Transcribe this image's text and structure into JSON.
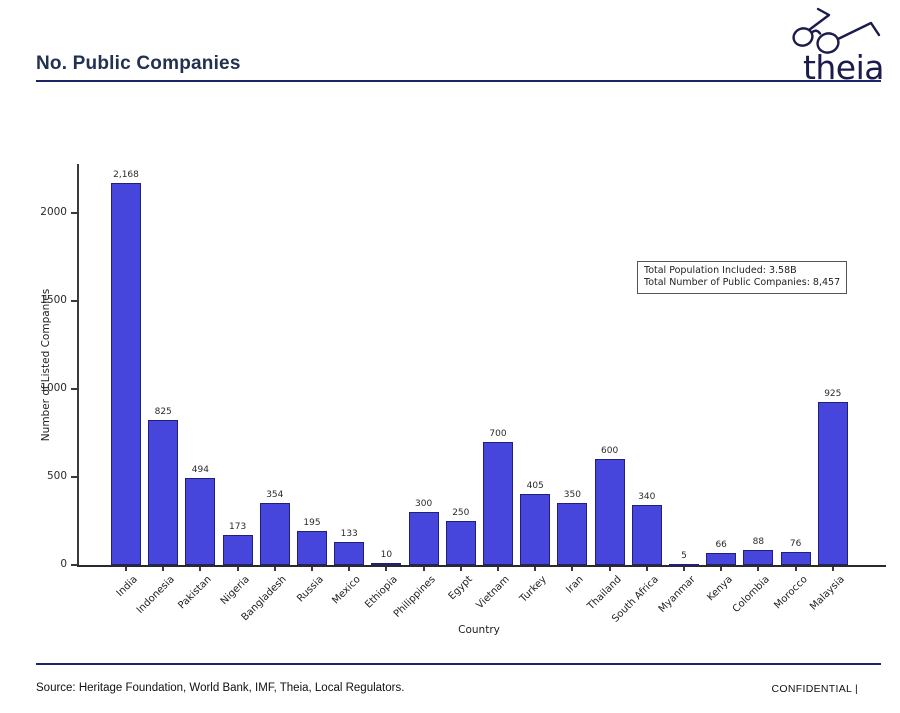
{
  "header": {
    "title": "No. Public Companies",
    "logo_text": "theia"
  },
  "chart_data": {
    "type": "bar",
    "title": "",
    "xlabel": "Country",
    "ylabel": "Number of Listed Companies",
    "ylim": [
      0,
      2200
    ],
    "yticks": [
      0,
      500,
      1000,
      1500,
      2000
    ],
    "grid": false,
    "legend": "none",
    "bar_color": "#4646dc",
    "bar_edge_color": "#20207a",
    "categories": [
      "India",
      "Indonesia",
      "Pakistan",
      "Nigeria",
      "Bangladesh",
      "Russia",
      "Mexico",
      "Ethiopia",
      "Philippines",
      "Egypt",
      "Vietnam",
      "Turkey",
      "Iran",
      "Thailand",
      "South Africa",
      "Myanmar",
      "Kenya",
      "Colombia",
      "Morocco",
      "Malaysia"
    ],
    "values": [
      2168,
      825,
      494,
      173,
      354,
      195,
      133,
      10,
      300,
      250,
      700,
      405,
      350,
      600,
      340,
      5,
      66,
      88,
      76,
      925
    ],
    "annotation": {
      "lines": [
        "Total Population Included: 3.58B",
        "Total Number of Public Companies: 8,457"
      ]
    }
  },
  "footer": {
    "source": "Source: Heritage Foundation, World Bank, IMF, Theia, Local Regulators.",
    "confidential": "CONFIDENTIAL |"
  },
  "colors": {
    "accent_navy": "#1b2668",
    "title_text": "#223150",
    "bar": "#4646dc",
    "bar_edge": "#20207a"
  }
}
